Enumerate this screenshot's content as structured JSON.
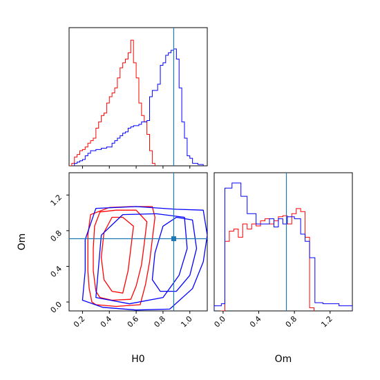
{
  "chart_data": [
    {
      "type": "histogram",
      "panel": "H0 marginal",
      "xlabel": "",
      "ylabel": "",
      "xlim": [
        0.1,
        1.13
      ],
      "ylim": [
        0,
        1.1
      ],
      "truth": 0.88,
      "series": [
        {
          "name": "",
          "color": "#ff0000",
          "edges": [
            0.0,
            0.02,
            0.04,
            0.06,
            0.08,
            0.1,
            0.12,
            0.14,
            0.16,
            0.18,
            0.2,
            0.22,
            0.24,
            0.26,
            0.28,
            0.3,
            0.32,
            0.34,
            0.36,
            0.38,
            0.4,
            0.42,
            0.44,
            0.46,
            0.48,
            0.5,
            0.52,
            0.54,
            0.56,
            0.58,
            0.6,
            0.62,
            0.64,
            0.66,
            0.68,
            0.7,
            0.72,
            0.74
          ],
          "values": [
            0,
            0,
            0,
            0,
            0,
            0,
            0.02,
            0.07,
            0.09,
            0.12,
            0.13,
            0.15,
            0.18,
            0.2,
            0.22,
            0.3,
            0.35,
            0.4,
            0.42,
            0.5,
            0.55,
            0.58,
            0.62,
            0.7,
            0.78,
            0.82,
            0.85,
            0.9,
            1.0,
            0.82,
            0.7,
            0.5,
            0.4,
            0.35,
            0.25,
            0.12,
            0.02
          ]
        },
        {
          "name": "",
          "color": "#0000ff",
          "edges": [
            0.14,
            0.16,
            0.18,
            0.2,
            0.22,
            0.24,
            0.26,
            0.28,
            0.3,
            0.32,
            0.34,
            0.36,
            0.38,
            0.4,
            0.42,
            0.44,
            0.46,
            0.48,
            0.5,
            0.52,
            0.54,
            0.56,
            0.58,
            0.6,
            0.62,
            0.64,
            0.66,
            0.68,
            0.7,
            0.72,
            0.74,
            0.76,
            0.78,
            0.8,
            0.82,
            0.84,
            0.86,
            0.88,
            0.9,
            0.92,
            0.94,
            0.96,
            0.98,
            1.0,
            1.02,
            1.04,
            1.06,
            1.08,
            1.1
          ],
          "values": [
            0.02,
            0.03,
            0.04,
            0.05,
            0.08,
            0.1,
            0.12,
            0.12,
            0.13,
            0.13,
            0.14,
            0.14,
            0.15,
            0.15,
            0.18,
            0.2,
            0.22,
            0.24,
            0.26,
            0.27,
            0.3,
            0.31,
            0.32,
            0.32,
            0.33,
            0.35,
            0.35,
            0.36,
            0.55,
            0.6,
            0.6,
            0.65,
            0.8,
            0.82,
            0.88,
            0.9,
            0.92,
            0.93,
            0.85,
            0.62,
            0.35,
            0.22,
            0.08,
            0.06,
            0.02,
            0.02,
            0.01,
            0.01
          ]
        }
      ]
    },
    {
      "type": "contour",
      "panel": "H0 vs Om",
      "xlabel": "H0",
      "ylabel": "Om",
      "xlim": [
        0.1,
        1.13
      ],
      "ylim": [
        -0.1,
        1.45
      ],
      "xticks": [
        "0.2",
        "0.4",
        "0.6",
        "0.8",
        "1.0"
      ],
      "yticks": [
        "0.0",
        "0.4",
        "0.8",
        "1.2"
      ],
      "truth": [
        0.88,
        0.71
      ],
      "series": [
        {
          "name": "",
          "color": "#ff0000",
          "contours": [
            [
              [
                0.27,
                0.0
              ],
              [
                0.25,
                0.15
              ],
              [
                0.24,
                0.35
              ],
              [
                0.24,
                0.55
              ],
              [
                0.24,
                0.75
              ],
              [
                0.26,
                0.98
              ],
              [
                0.4,
                1.06
              ],
              [
                0.56,
                1.07
              ],
              [
                0.72,
                1.07
              ],
              [
                0.74,
                0.95
              ],
              [
                0.72,
                0.7
              ],
              [
                0.7,
                0.45
              ],
              [
                0.67,
                0.2
              ],
              [
                0.63,
                -0.03
              ],
              [
                0.45,
                -0.05
              ],
              [
                0.3,
                -0.03
              ],
              [
                0.27,
                0.0
              ]
            ],
            [
              [
                0.3,
                0.12
              ],
              [
                0.28,
                0.35
              ],
              [
                0.28,
                0.6
              ],
              [
                0.29,
                0.85
              ],
              [
                0.33,
                1.01
              ],
              [
                0.45,
                1.03
              ],
              [
                0.6,
                1.03
              ],
              [
                0.68,
                0.9
              ],
              [
                0.66,
                0.65
              ],
              [
                0.64,
                0.42
              ],
              [
                0.6,
                0.18
              ],
              [
                0.56,
                0.03
              ],
              [
                0.42,
                0.02
              ],
              [
                0.33,
                0.05
              ],
              [
                0.3,
                0.12
              ]
            ],
            [
              [
                0.36,
                0.25
              ],
              [
                0.34,
                0.5
              ],
              [
                0.36,
                0.78
              ],
              [
                0.42,
                0.95
              ],
              [
                0.5,
                0.95
              ],
              [
                0.58,
                0.85
              ],
              [
                0.56,
                0.6
              ],
              [
                0.54,
                0.35
              ],
              [
                0.5,
                0.1
              ],
              [
                0.42,
                0.12
              ],
              [
                0.36,
                0.25
              ]
            ]
          ]
        },
        {
          "name": "",
          "color": "#0000ff",
          "contours": [
            [
              [
                0.2,
                0.02
              ],
              [
                0.22,
                0.35
              ],
              [
                0.22,
                0.7
              ],
              [
                0.3,
                1.05
              ],
              [
                0.6,
                1.07
              ],
              [
                0.9,
                1.04
              ],
              [
                1.1,
                1.03
              ],
              [
                1.13,
                0.75
              ],
              [
                1.1,
                0.45
              ],
              [
                1.02,
                0.15
              ],
              [
                0.85,
                -0.08
              ],
              [
                0.6,
                -0.09
              ],
              [
                0.35,
                -0.06
              ],
              [
                0.2,
                0.02
              ]
            ],
            [
              [
                0.3,
                0.05
              ],
              [
                0.32,
                0.4
              ],
              [
                0.34,
                0.75
              ],
              [
                0.5,
                0.98
              ],
              [
                0.75,
                0.99
              ],
              [
                0.96,
                0.95
              ],
              [
                0.98,
                0.6
              ],
              [
                0.92,
                0.3
              ],
              [
                0.8,
                0.05
              ],
              [
                0.55,
                -0.02
              ],
              [
                0.3,
                0.05
              ]
            ],
            [
              [
                0.72,
                0.25
              ],
              [
                0.74,
                0.55
              ],
              [
                0.8,
                0.85
              ],
              [
                0.9,
                0.95
              ],
              [
                1.02,
                0.92
              ],
              [
                1.05,
                0.6
              ],
              [
                1.0,
                0.3
              ],
              [
                0.9,
                0.12
              ],
              [
                0.78,
                0.12
              ],
              [
                0.72,
                0.25
              ]
            ]
          ]
        }
      ]
    },
    {
      "type": "histogram",
      "panel": "Om marginal",
      "xlabel": "Om",
      "ylabel": "",
      "xlim": [
        -0.1,
        1.45
      ],
      "ylim": [
        0,
        1.35
      ],
      "xticks": [
        "0.0",
        "0.4",
        "0.8",
        "1.2"
      ],
      "truth": 0.71,
      "series": [
        {
          "name": "",
          "color": "#ff0000",
          "edges": [
            -0.03,
            0.0,
            0.02,
            0.07,
            0.12,
            0.17,
            0.22,
            0.27,
            0.32,
            0.37,
            0.42,
            0.47,
            0.52,
            0.57,
            0.62,
            0.67,
            0.72,
            0.77,
            0.82,
            0.87,
            0.92,
            0.97,
            1.02
          ],
          "values": [
            0,
            0,
            0.68,
            0.78,
            0.8,
            0.72,
            0.85,
            0.8,
            0.85,
            0.83,
            0.88,
            0.9,
            0.85,
            0.88,
            0.92,
            0.93,
            0.85,
            0.95,
            1.0,
            0.97,
            0.72,
            0.03
          ]
        },
        {
          "name": "",
          "color": "#0000ff",
          "edges": [
            -0.1,
            -0.02,
            0.02,
            0.1,
            0.2,
            0.27,
            0.32,
            0.37,
            0.42,
            0.52,
            0.57,
            0.62,
            0.67,
            0.72,
            0.8,
            0.87,
            0.92,
            0.97,
            1.03,
            1.12,
            1.3,
            1.45
          ],
          "values": [
            0.05,
            0.07,
            1.2,
            1.25,
            1.12,
            0.95,
            0.95,
            0.85,
            0.85,
            0.9,
            0.82,
            0.9,
            0.85,
            0.92,
            0.9,
            0.75,
            0.68,
            0.52,
            0.08,
            0.07,
            0.05
          ]
        }
      ]
    }
  ],
  "colors": {
    "truth_line": "#1f77b4",
    "truth_marker": "#1f77b4",
    "axes": "#000000"
  }
}
